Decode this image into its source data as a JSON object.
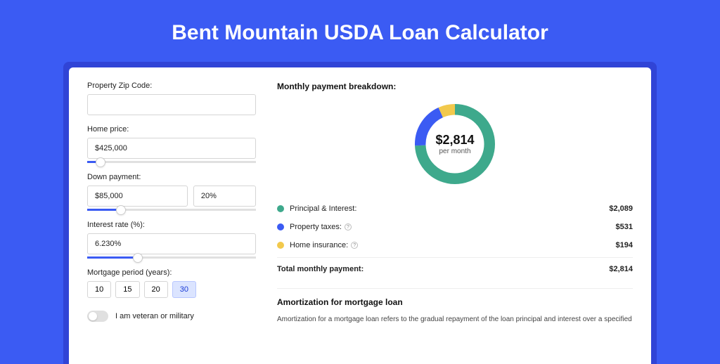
{
  "page": {
    "title": "Bent Mountain USDA Loan Calculator",
    "background_color": "#3B5BF3",
    "panel_border_color": "#3044d6"
  },
  "form": {
    "zip": {
      "label": "Property Zip Code:",
      "value": ""
    },
    "home_price": {
      "label": "Home price:",
      "value": "$425,000",
      "slider_percent": 8
    },
    "down_payment": {
      "label": "Down payment:",
      "value": "$85,000",
      "percent": "20%",
      "slider_percent": 20
    },
    "interest_rate": {
      "label": "Interest rate (%):",
      "value": "6.230%",
      "slider_percent": 30
    },
    "mortgage_period": {
      "label": "Mortgage period (years):",
      "options": [
        "10",
        "15",
        "20",
        "30"
      ],
      "selected": "30"
    },
    "veteran": {
      "label": "I am veteran or military",
      "checked": false
    }
  },
  "breakdown": {
    "title": "Monthly payment breakdown:",
    "donut": {
      "center_value": "$2,814",
      "center_sub": "per month",
      "type": "donut",
      "thickness": 14,
      "series": [
        {
          "key": "principal_interest",
          "value": 2089,
          "color": "#3ea98c"
        },
        {
          "key": "property_taxes",
          "value": 531,
          "color": "#3B5BF3"
        },
        {
          "key": "home_insurance",
          "value": 194,
          "color": "#f2c94c"
        }
      ]
    },
    "rows": [
      {
        "label": "Principal & Interest:",
        "value": "$2,089",
        "color": "#3ea98c",
        "info": false
      },
      {
        "label": "Property taxes:",
        "value": "$531",
        "color": "#3B5BF3",
        "info": true
      },
      {
        "label": "Home insurance:",
        "value": "$194",
        "color": "#f2c94c",
        "info": true
      }
    ],
    "total": {
      "label": "Total monthly payment:",
      "value": "$2,814"
    }
  },
  "amortization": {
    "title": "Amortization for mortgage loan",
    "text": "Amortization for a mortgage loan refers to the gradual repayment of the loan principal and interest over a specified"
  }
}
